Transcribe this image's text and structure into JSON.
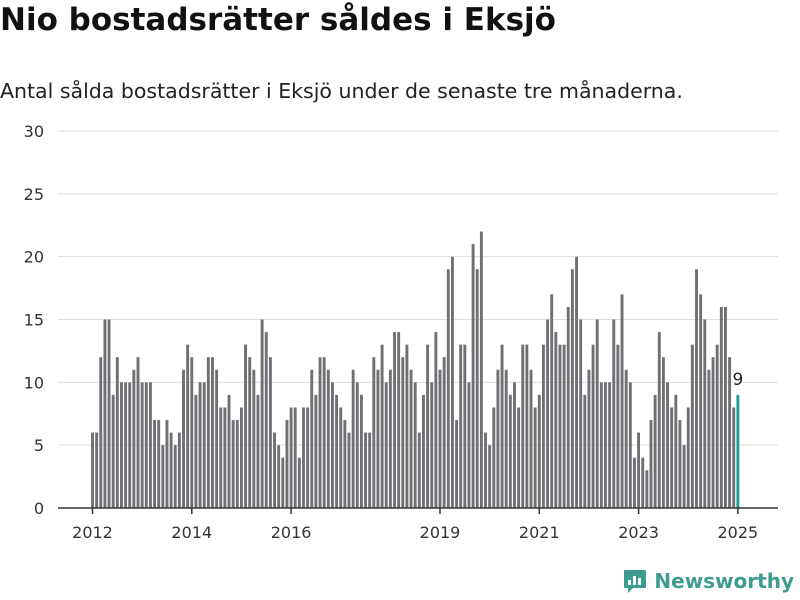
{
  "header": {
    "title": "Nio bostadsrätter såldes i Eksjö",
    "subtitle": "Antal sålda bostadsrätter i Eksjö under de senaste tre månaderna."
  },
  "brand": {
    "name": "Newsworthy",
    "color": "#3d9b8f",
    "icon": "newsworthy-logo-icon"
  },
  "colors": {
    "bar": "#707074",
    "highlight": "#1f9e93",
    "grid": "#dddddd",
    "axis": "#333333"
  },
  "chart_data": {
    "type": "bar",
    "title": "Nio bostadsrätter såldes i Eksjö",
    "subtitle": "Antal sålda bostadsrätter i Eksjö under de senaste tre månaderna.",
    "x_start": "2012-01",
    "x_interval": "month",
    "y_ticks": [
      0,
      5,
      10,
      15,
      20,
      25,
      30
    ],
    "ylim": [
      0,
      30
    ],
    "x_ticks": [
      "2012",
      "2014",
      "2016",
      "2019",
      "2021",
      "2023",
      "2025"
    ],
    "grid": true,
    "highlight_label": "9",
    "values": [
      6,
      6,
      12,
      15,
      15,
      9,
      12,
      10,
      10,
      10,
      11,
      12,
      10,
      10,
      10,
      7,
      7,
      5,
      7,
      6,
      5,
      6,
      11,
      13,
      12,
      9,
      10,
      10,
      12,
      12,
      11,
      8,
      8,
      9,
      7,
      7,
      8,
      13,
      12,
      11,
      9,
      15,
      14,
      12,
      6,
      5,
      4,
      7,
      8,
      8,
      4,
      8,
      8,
      11,
      9,
      12,
      12,
      11,
      10,
      9,
      8,
      7,
      6,
      11,
      10,
      9,
      6,
      6,
      12,
      11,
      13,
      10,
      11,
      14,
      14,
      12,
      13,
      11,
      10,
      6,
      9,
      13,
      10,
      14,
      11,
      12,
      19,
      20,
      7,
      13,
      13,
      10,
      21,
      19,
      22,
      6,
      5,
      8,
      11,
      13,
      11,
      9,
      10,
      8,
      13,
      13,
      11,
      8,
      9,
      13,
      15,
      17,
      14,
      13,
      13,
      16,
      19,
      20,
      15,
      9,
      11,
      13,
      15,
      10,
      10,
      10,
      15,
      13,
      17,
      11,
      10,
      4,
      6,
      4,
      3,
      7,
      9,
      14,
      12,
      10,
      8,
      9,
      7,
      5,
      8,
      13,
      19,
      17,
      15,
      11,
      12,
      13,
      16,
      16,
      12,
      8,
      9
    ]
  }
}
